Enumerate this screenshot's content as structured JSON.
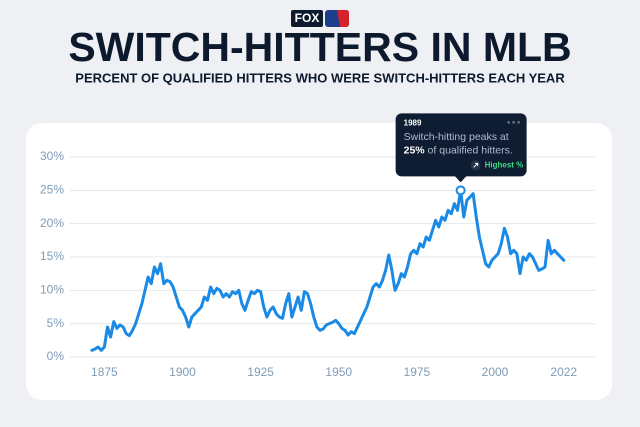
{
  "logo": "FOX",
  "chart_data": {
    "type": "line",
    "title": "SWITCH-HITTERS IN MLB",
    "subtitle": "PERCENT OF QUALIFIED HITTERS WHO WERE SWITCH-HITTERS EACH YEAR",
    "x": [
      1871,
      1872,
      1873,
      1874,
      1875,
      1876,
      1877,
      1878,
      1879,
      1880,
      1881,
      1882,
      1883,
      1884,
      1885,
      1886,
      1887,
      1888,
      1889,
      1890,
      1891,
      1892,
      1893,
      1894,
      1895,
      1896,
      1897,
      1898,
      1899,
      1900,
      1901,
      1902,
      1903,
      1904,
      1905,
      1906,
      1907,
      1908,
      1909,
      1910,
      1911,
      1912,
      1913,
      1914,
      1915,
      1916,
      1917,
      1918,
      1919,
      1920,
      1921,
      1922,
      1923,
      1924,
      1925,
      1926,
      1927,
      1928,
      1929,
      1930,
      1931,
      1932,
      1933,
      1934,
      1935,
      1936,
      1937,
      1938,
      1939,
      1940,
      1941,
      1942,
      1943,
      1944,
      1945,
      1946,
      1947,
      1948,
      1949,
      1950,
      1951,
      1952,
      1953,
      1954,
      1955,
      1956,
      1957,
      1958,
      1959,
      1960,
      1961,
      1962,
      1963,
      1964,
      1965,
      1966,
      1967,
      1968,
      1969,
      1970,
      1971,
      1972,
      1973,
      1974,
      1975,
      1976,
      1977,
      1978,
      1979,
      1980,
      1981,
      1982,
      1983,
      1984,
      1985,
      1986,
      1987,
      1988,
      1989,
      1990,
      1991,
      1992,
      1993,
      1994,
      1995,
      1996,
      1997,
      1998,
      1999,
      2000,
      2001,
      2002,
      2003,
      2004,
      2005,
      2006,
      2007,
      2008,
      2009,
      2010,
      2011,
      2012,
      2013,
      2014,
      2015,
      2016,
      2017,
      2018,
      2019,
      2020,
      2021,
      2022
    ],
    "series": [
      {
        "color": "#1a8ae6",
        "values": [
          1.0,
          1.2,
          1.5,
          1.0,
          1.5,
          4.5,
          3.0,
          5.3,
          4.3,
          4.8,
          4.5,
          3.5,
          3.2,
          4.0,
          5.0,
          6.5,
          8.0,
          10.0,
          12.0,
          11.0,
          13.5,
          12.5,
          14.0,
          11.0,
          11.5,
          11.3,
          10.5,
          9.0,
          7.5,
          7.0,
          6.0,
          4.5,
          6.0,
          6.5,
          7.0,
          7.5,
          9.0,
          8.5,
          10.5,
          9.5,
          10.3,
          10.0,
          9.0,
          9.5,
          9.0,
          9.8,
          9.5,
          10.0,
          8.0,
          7.0,
          8.5,
          9.8,
          9.5,
          10.0,
          9.8,
          7.5,
          6.0,
          7.0,
          7.5,
          6.5,
          6.0,
          5.8,
          8.0,
          9.5,
          6.0,
          7.5,
          9.0,
          7.0,
          9.8,
          9.5,
          8.0,
          6.0,
          4.5,
          4.0,
          4.2,
          4.8,
          5.0,
          5.2,
          5.5,
          5.0,
          4.3,
          4.0,
          3.3,
          3.8,
          3.5,
          4.5,
          5.5,
          6.5,
          7.5,
          9.0,
          10.5,
          11.0,
          10.5,
          11.5,
          13.0,
          15.3,
          13.0,
          10.0,
          11.0,
          12.5,
          12.0,
          13.5,
          15.5,
          16.0,
          15.5,
          17.0,
          16.5,
          18.0,
          17.5,
          19.0,
          20.5,
          19.5,
          21.0,
          20.5,
          22.0,
          21.5,
          23.0,
          22.0,
          25.0,
          21.0,
          23.5,
          24.0,
          24.5,
          21.0,
          18.0,
          16.0,
          14.0,
          13.5,
          14.5,
          15.0,
          15.5,
          17.0,
          19.3,
          18.0,
          15.5,
          16.0,
          15.5,
          12.5,
          15.0,
          14.5,
          15.5,
          15.0,
          14.0,
          13.0,
          13.2,
          13.5,
          17.5,
          15.5,
          16.0,
          15.5,
          15.0,
          14.5
        ]
      }
    ],
    "xlim": [
      1864,
      2032
    ],
    "xticks": [
      1875,
      1900,
      1925,
      1950,
      1975,
      2000,
      2022
    ],
    "ylim": [
      0,
      30
    ],
    "yticks": [
      {
        "value": 0,
        "label": "0%"
      },
      {
        "value": 5,
        "label": "5%"
      },
      {
        "value": 10,
        "label": "10%"
      },
      {
        "value": 15,
        "label": "15%"
      },
      {
        "value": 20,
        "label": "20%"
      },
      {
        "value": 25,
        "label": "25%"
      },
      {
        "value": 30,
        "label": "30%"
      }
    ],
    "grid": true,
    "annotation": {
      "x": 1989,
      "y": 25,
      "date": "1989",
      "text": "Switch-hitting peaks at",
      "highlight": "25%",
      "text_end": " of qualified hitters.",
      "badge": "Highest %"
    }
  }
}
